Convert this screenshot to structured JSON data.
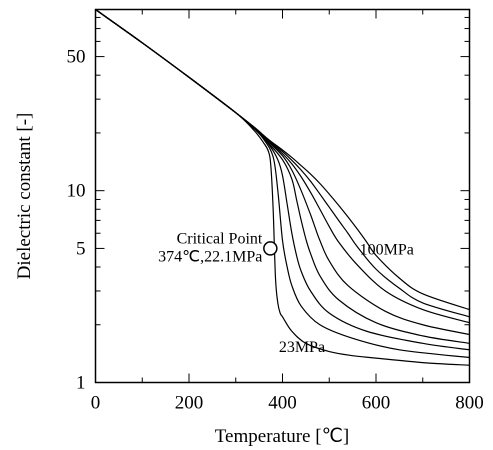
{
  "chart_data": {
    "type": "line",
    "title": "",
    "xlabel": "Temperature [℃]",
    "ylabel": "Dielectric constant [-]",
    "xlim": [
      0,
      800
    ],
    "ylim": [
      1,
      88
    ],
    "yscale": "log",
    "grid": false,
    "xticks": [
      0,
      200,
      400,
      600,
      800
    ],
    "xtick_labels": [
      "0",
      "200",
      "400",
      "600",
      "800"
    ],
    "yticks": [
      1,
      5,
      10,
      50
    ],
    "ytick_labels": [
      "1",
      "5",
      "10",
      "50"
    ],
    "ticks_direction": "in",
    "series": [
      {
        "name": "23MPa",
        "x": [
          0,
          100,
          200,
          300,
          340,
          360,
          370,
          375,
          380,
          385,
          390,
          395,
          400,
          420,
          450,
          500,
          550,
          600,
          700,
          800
        ],
        "y": [
          88,
          59,
          39,
          25.5,
          20.5,
          17.7,
          16.0,
          13.5,
          8.0,
          3.5,
          2.6,
          2.3,
          2.2,
          1.85,
          1.6,
          1.45,
          1.38,
          1.34,
          1.27,
          1.23
        ]
      },
      {
        "name": "",
        "x": [
          0,
          100,
          200,
          300,
          340,
          360,
          380,
          390,
          400,
          410,
          420,
          440,
          480,
          550,
          650,
          800
        ],
        "y": [
          88,
          59,
          39,
          25.5,
          21,
          18.5,
          15,
          10,
          5.5,
          4.0,
          3.2,
          2.5,
          2.0,
          1.7,
          1.48,
          1.35
        ]
      },
      {
        "name": "",
        "x": [
          0,
          100,
          200,
          300,
          340,
          370,
          390,
          400,
          410,
          420,
          430,
          440,
          460,
          500,
          580,
          700,
          800
        ],
        "y": [
          88,
          59,
          39,
          25.5,
          21,
          17.5,
          14.5,
          12,
          8.5,
          6,
          4.6,
          3.8,
          3.0,
          2.3,
          1.85,
          1.6,
          1.48
        ]
      },
      {
        "name": "",
        "x": [
          0,
          100,
          200,
          300,
          340,
          370,
          400,
          420,
          430,
          440,
          450,
          460,
          480,
          520,
          600,
          700,
          800
        ],
        "y": [
          88,
          59,
          39,
          25.5,
          21,
          17.7,
          14.5,
          11.5,
          9,
          7,
          5.6,
          4.7,
          3.6,
          2.7,
          2.05,
          1.75,
          1.6
        ]
      },
      {
        "name": "",
        "x": [
          0,
          100,
          200,
          300,
          340,
          370,
          400,
          420,
          440,
          460,
          470,
          480,
          500,
          540,
          620,
          700,
          800
        ],
        "y": [
          88,
          59,
          39,
          25.5,
          21.2,
          18,
          15.2,
          12.8,
          10,
          7.5,
          6.4,
          5.5,
          4.3,
          3.2,
          2.35,
          2.0,
          1.78
        ]
      },
      {
        "name": "",
        "x": [
          0,
          100,
          200,
          300,
          340,
          370,
          400,
          420,
          440,
          460,
          480,
          500,
          520,
          560,
          620,
          700,
          800
        ],
        "y": [
          88,
          59,
          39,
          25.5,
          21.2,
          18.2,
          15.6,
          13.8,
          11.8,
          9.8,
          8,
          6.5,
          5.4,
          4.1,
          3.0,
          2.4,
          2.05
        ]
      },
      {
        "name": "",
        "x": [
          0,
          100,
          200,
          300,
          340,
          370,
          400,
          420,
          440,
          460,
          480,
          500,
          520,
          540,
          560,
          600,
          650,
          700,
          800
        ],
        "y": [
          88,
          59,
          39,
          25.5,
          21.3,
          18.3,
          16,
          14.4,
          12.8,
          11.2,
          9.6,
          8.2,
          7.0,
          6.0,
          5.1,
          3.9,
          3.1,
          2.6,
          2.2
        ]
      },
      {
        "name": "100MPa",
        "x": [
          0,
          100,
          200,
          300,
          340,
          370,
          400,
          420,
          440,
          460,
          480,
          500,
          520,
          540,
          560,
          580,
          600,
          650,
          700,
          800
        ],
        "y": [
          88,
          59,
          39,
          25.5,
          21.4,
          18.5,
          16.3,
          14.9,
          13.5,
          12.2,
          10.9,
          9.6,
          8.4,
          7.3,
          6.3,
          5.4,
          4.6,
          3.5,
          2.9,
          2.4
        ]
      }
    ],
    "annotations": [
      {
        "text_lines": [
          "Critical Point",
          "374℃,22.1MPa"
        ],
        "x": 374,
        "y": 5.0,
        "marker": "open-circle"
      }
    ]
  }
}
